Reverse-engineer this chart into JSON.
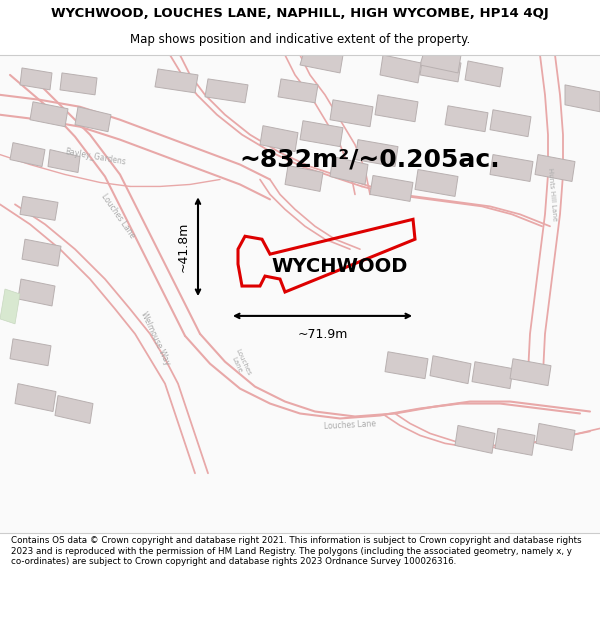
{
  "title": "WYCHWOOD, LOUCHES LANE, NAPHILL, HIGH WYCOMBE, HP14 4QJ",
  "subtitle": "Map shows position and indicative extent of the property.",
  "area_text": "~832m²/~0.205ac.",
  "width_label": "~71.9m",
  "height_label": "~41.8m",
  "property_label": "WYCHWOOD",
  "footer": "Contains OS data © Crown copyright and database right 2021. This information is subject to Crown copyright and database rights 2023 and is reproduced with the permission of HM Land Registry. The polygons (including the associated geometry, namely x, y co-ordinates) are subject to Crown copyright and database rights 2023 Ordnance Survey 100026316.",
  "map_bg": "#ffffff",
  "plot_outline_color": "#dd0000",
  "road_color": "#e8a8a8",
  "building_color": "#d4cccc",
  "building_edge": "#b8b0b0",
  "title_fontsize": 9.5,
  "subtitle_fontsize": 8.5,
  "area_fontsize": 18,
  "label_fontsize": 14,
  "dim_fontsize": 9
}
